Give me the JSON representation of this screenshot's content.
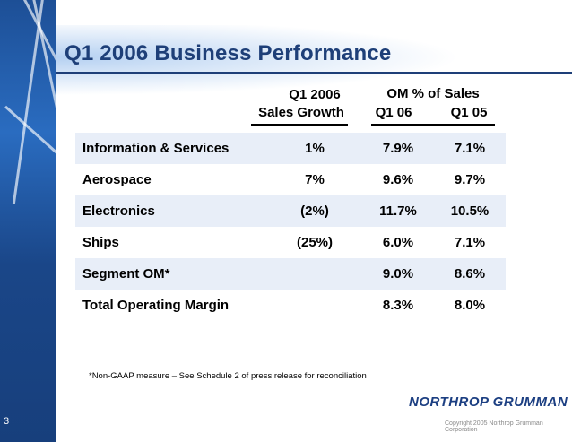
{
  "slide": {
    "title": "Q1 2006 Business Performance",
    "page_number": "3",
    "footnote": "*Non-GAAP measure – See Schedule 2 of press release for reconciliation",
    "logo_text": "NORTHROP GRUMMAN",
    "copyright": "Copyright 2005 Northrop Grumman Corporation"
  },
  "table": {
    "header_growth_line1": "Q1 2006",
    "header_growth_line2": "Sales Growth",
    "header_om": "OM % of Sales",
    "header_q106": "Q1 06",
    "header_q105": "Q1 05",
    "rows": [
      {
        "label": "Information & Services",
        "growth": "1%",
        "q106": "7.9%",
        "q105": "7.1%"
      },
      {
        "label": "Aerospace",
        "growth": "7%",
        "q106": "9.6%",
        "q105": "9.7%"
      },
      {
        "label": "Electronics",
        "growth": "(2%)",
        "q106": "11.7%",
        "q105": "10.5%"
      },
      {
        "label": "Ships",
        "growth": "(25%)",
        "q106": "6.0%",
        "q105": "7.1%"
      },
      {
        "label": "Segment OM*",
        "growth": "",
        "q106": "9.0%",
        "q105": "8.6%"
      },
      {
        "label": "Total Operating Margin",
        "growth": "",
        "q106": "8.3%",
        "q105": "8.0%"
      }
    ]
  },
  "colors": {
    "title": "#1e3f78",
    "band": "#1d4f96",
    "row_shade": "#e8eef8",
    "logo": "#1c3f82"
  }
}
